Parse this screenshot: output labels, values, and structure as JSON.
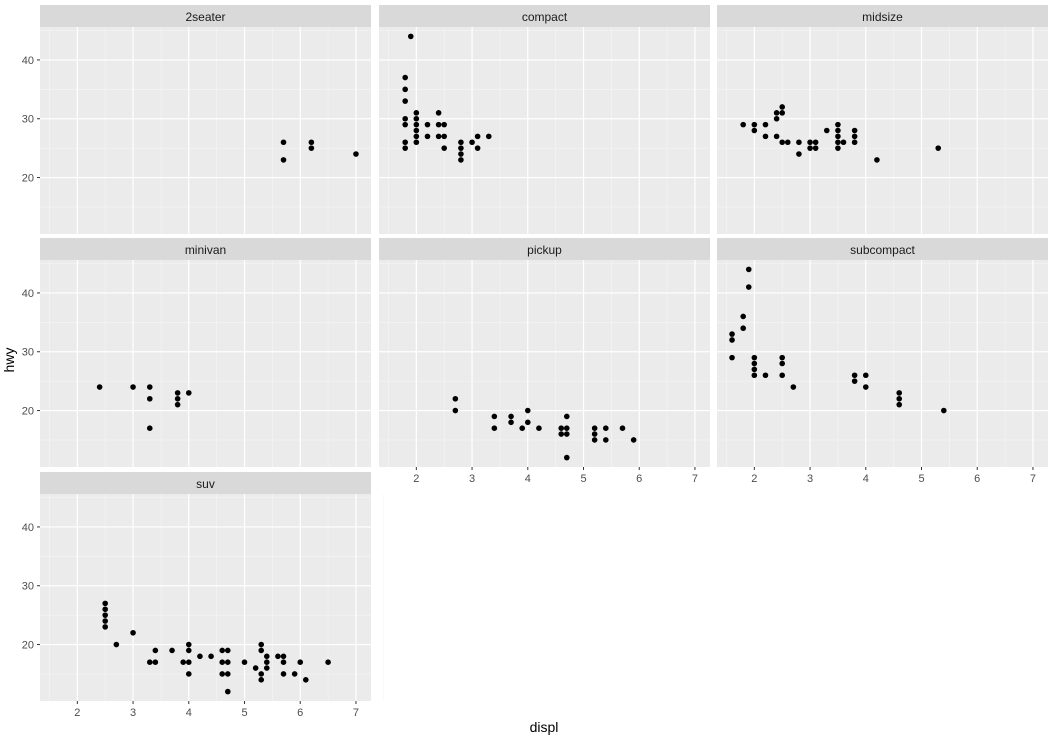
{
  "chart_data": {
    "type": "scatter",
    "xlabel": "displ",
    "ylabel": "hwy",
    "xlim": [
      1.33,
      7.27
    ],
    "ylim": [
      10.4,
      45.6
    ],
    "x_ticks": [
      2,
      3,
      4,
      5,
      6,
      7
    ],
    "y_ticks": [
      20,
      30,
      40
    ],
    "grid": true,
    "colors": {
      "panel": "#ebebeb",
      "strip": "#d9d9d9",
      "grid_major": "#ffffff",
      "point": "#000000"
    },
    "facets": [
      {
        "name": "2seater",
        "points": [
          [
            5.7,
            26
          ],
          [
            5.7,
            23
          ],
          [
            6.2,
            26
          ],
          [
            6.2,
            25
          ],
          [
            7.0,
            24
          ]
        ]
      },
      {
        "name": "compact",
        "points": [
          [
            1.8,
            25
          ],
          [
            1.8,
            26
          ],
          [
            1.8,
            29
          ],
          [
            1.8,
            30
          ],
          [
            1.8,
            33
          ],
          [
            1.8,
            35
          ],
          [
            1.8,
            37
          ],
          [
            1.9,
            44
          ],
          [
            2.0,
            26
          ],
          [
            2.0,
            27
          ],
          [
            2.0,
            28
          ],
          [
            2.0,
            29
          ],
          [
            2.0,
            30
          ],
          [
            2.0,
            31
          ],
          [
            2.2,
            27
          ],
          [
            2.2,
            29
          ],
          [
            2.4,
            27
          ],
          [
            2.4,
            29
          ],
          [
            2.4,
            31
          ],
          [
            2.5,
            25
          ],
          [
            2.5,
            27
          ],
          [
            2.5,
            29
          ],
          [
            2.8,
            23
          ],
          [
            2.8,
            24
          ],
          [
            2.8,
            25
          ],
          [
            2.8,
            26
          ],
          [
            3.0,
            26
          ],
          [
            3.1,
            25
          ],
          [
            3.1,
            27
          ],
          [
            3.3,
            27
          ]
        ]
      },
      {
        "name": "midsize",
        "points": [
          [
            1.8,
            29
          ],
          [
            2.0,
            28
          ],
          [
            2.0,
            29
          ],
          [
            2.2,
            27
          ],
          [
            2.2,
            29
          ],
          [
            2.4,
            27
          ],
          [
            2.4,
            30
          ],
          [
            2.4,
            31
          ],
          [
            2.5,
            26
          ],
          [
            2.5,
            31
          ],
          [
            2.5,
            32
          ],
          [
            2.6,
            26
          ],
          [
            2.8,
            24
          ],
          [
            2.8,
            26
          ],
          [
            3.0,
            25
          ],
          [
            3.0,
            26
          ],
          [
            3.1,
            25
          ],
          [
            3.1,
            26
          ],
          [
            3.3,
            28
          ],
          [
            3.5,
            25
          ],
          [
            3.5,
            26
          ],
          [
            3.5,
            27
          ],
          [
            3.5,
            28
          ],
          [
            3.5,
            29
          ],
          [
            3.6,
            26
          ],
          [
            3.8,
            26
          ],
          [
            3.8,
            27
          ],
          [
            3.8,
            28
          ],
          [
            4.2,
            23
          ],
          [
            5.3,
            25
          ]
        ]
      },
      {
        "name": "minivan",
        "points": [
          [
            2.4,
            24
          ],
          [
            3.0,
            24
          ],
          [
            3.3,
            17
          ],
          [
            3.3,
            22
          ],
          [
            3.3,
            24
          ],
          [
            3.8,
            21
          ],
          [
            3.8,
            22
          ],
          [
            3.8,
            23
          ],
          [
            4.0,
            23
          ]
        ]
      },
      {
        "name": "pickup",
        "points": [
          [
            2.7,
            20
          ],
          [
            2.7,
            22
          ],
          [
            3.4,
            17
          ],
          [
            3.4,
            19
          ],
          [
            3.7,
            18
          ],
          [
            3.7,
            19
          ],
          [
            3.9,
            17
          ],
          [
            4.0,
            18
          ],
          [
            4.0,
            20
          ],
          [
            4.2,
            17
          ],
          [
            4.6,
            16
          ],
          [
            4.6,
            17
          ],
          [
            4.7,
            12
          ],
          [
            4.7,
            16
          ],
          [
            4.7,
            17
          ],
          [
            4.7,
            19
          ],
          [
            5.2,
            15
          ],
          [
            5.2,
            16
          ],
          [
            5.2,
            17
          ],
          [
            5.4,
            15
          ],
          [
            5.4,
            17
          ],
          [
            5.7,
            17
          ],
          [
            5.9,
            15
          ]
        ]
      },
      {
        "name": "subcompact",
        "points": [
          [
            1.6,
            29
          ],
          [
            1.6,
            32
          ],
          [
            1.6,
            33
          ],
          [
            1.8,
            34
          ],
          [
            1.8,
            36
          ],
          [
            1.9,
            41
          ],
          [
            1.9,
            44
          ],
          [
            2.0,
            26
          ],
          [
            2.0,
            27
          ],
          [
            2.0,
            28
          ],
          [
            2.0,
            29
          ],
          [
            2.2,
            26
          ],
          [
            2.5,
            26
          ],
          [
            2.5,
            28
          ],
          [
            2.5,
            29
          ],
          [
            2.7,
            24
          ],
          [
            3.8,
            25
          ],
          [
            3.8,
            26
          ],
          [
            4.0,
            24
          ],
          [
            4.0,
            26
          ],
          [
            4.6,
            21
          ],
          [
            4.6,
            22
          ],
          [
            4.6,
            23
          ],
          [
            5.4,
            20
          ]
        ]
      },
      {
        "name": "suv",
        "points": [
          [
            2.5,
            23
          ],
          [
            2.5,
            24
          ],
          [
            2.5,
            25
          ],
          [
            2.5,
            26
          ],
          [
            2.5,
            27
          ],
          [
            2.7,
            20
          ],
          [
            3.0,
            22
          ],
          [
            3.3,
            17
          ],
          [
            3.4,
            17
          ],
          [
            3.4,
            19
          ],
          [
            3.7,
            19
          ],
          [
            3.9,
            17
          ],
          [
            4.0,
            15
          ],
          [
            4.0,
            17
          ],
          [
            4.0,
            19
          ],
          [
            4.0,
            20
          ],
          [
            4.2,
            18
          ],
          [
            4.4,
            18
          ],
          [
            4.6,
            15
          ],
          [
            4.6,
            17
          ],
          [
            4.6,
            19
          ],
          [
            4.7,
            12
          ],
          [
            4.7,
            15
          ],
          [
            4.7,
            17
          ],
          [
            4.7,
            19
          ],
          [
            5.0,
            17
          ],
          [
            5.2,
            16
          ],
          [
            5.3,
            14
          ],
          [
            5.3,
            15
          ],
          [
            5.3,
            19
          ],
          [
            5.3,
            20
          ],
          [
            5.4,
            16
          ],
          [
            5.4,
            17
          ],
          [
            5.4,
            18
          ],
          [
            5.6,
            18
          ],
          [
            5.7,
            15
          ],
          [
            5.7,
            17
          ],
          [
            5.7,
            18
          ],
          [
            5.9,
            15
          ],
          [
            6.0,
            17
          ],
          [
            6.1,
            14
          ],
          [
            6.5,
            17
          ]
        ]
      }
    ]
  }
}
